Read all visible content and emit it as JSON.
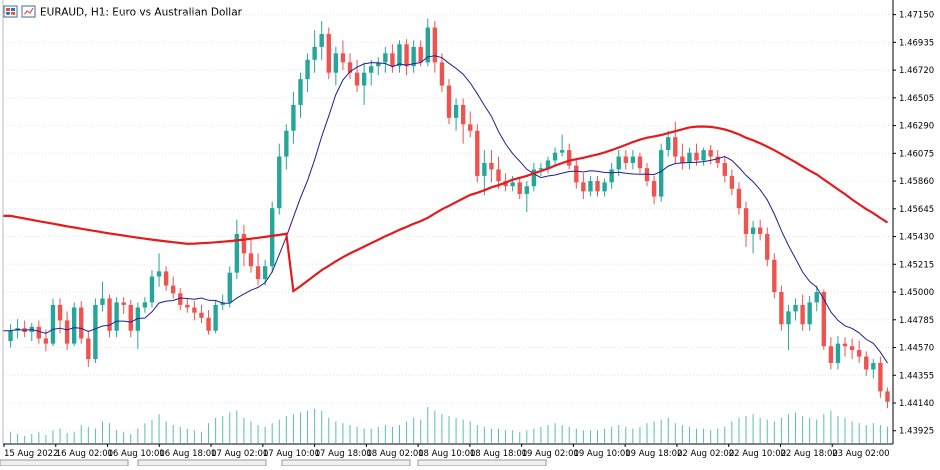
{
  "header": {
    "symbol_title": "EURAUD, H1:  Euro vs Australian Dollar",
    "toolbar_icons": [
      "grid-chart-icon",
      "chart-window-icon"
    ]
  },
  "colors": {
    "background": "#ffffff",
    "bull": "#26a69a",
    "bear": "#ef5350",
    "ma_fast": "#1f1f8f",
    "ma_slow": "#e41a1c",
    "volume": "#26a69a",
    "grid": "#e6e6e6",
    "axis": "#000000"
  },
  "chart_data": {
    "type": "candlestick",
    "title": "EURAUD, H1:  Euro vs Australian Dollar",
    "ylim": [
      1.4383,
      1.4724
    ],
    "y_ticks": [
      "1.47150",
      "1.46935",
      "1.46720",
      "1.46505",
      "1.46290",
      "1.46075",
      "1.45860",
      "1.45645",
      "1.45430",
      "1.45215",
      "1.45000",
      "1.44785",
      "1.44570",
      "1.44355",
      "1.44140",
      "1.43925"
    ],
    "x_ticks": [
      "15 Aug 2022",
      "16 Aug 02:00",
      "16 Aug 10:00",
      "16 Aug 18:00",
      "17 Aug 02:00",
      "17 Aug 10:00",
      "17 Aug 18:00",
      "18 Aug 02:00",
      "18 Aug 10:00",
      "18 Aug 18:00",
      "19 Aug 02:00",
      "19 Aug 10:00",
      "19 Aug 18:00",
      "22 Aug 02:00",
      "22 Aug 10:00",
      "22 Aug 18:00",
      "23 Aug 02:00"
    ],
    "grid": true,
    "candles": [
      {
        "o": 1.4462,
        "h": 1.4475,
        "l": 1.4457,
        "c": 1.447
      },
      {
        "o": 1.447,
        "h": 1.4479,
        "l": 1.4464,
        "c": 1.4472
      },
      {
        "o": 1.4472,
        "h": 1.4478,
        "l": 1.4465,
        "c": 1.4469
      },
      {
        "o": 1.4469,
        "h": 1.4476,
        "l": 1.4462,
        "c": 1.4473
      },
      {
        "o": 1.4473,
        "h": 1.4478,
        "l": 1.446,
        "c": 1.4464
      },
      {
        "o": 1.4464,
        "h": 1.4471,
        "l": 1.4454,
        "c": 1.446
      },
      {
        "o": 1.446,
        "h": 1.4495,
        "l": 1.4458,
        "c": 1.449
      },
      {
        "o": 1.449,
        "h": 1.4495,
        "l": 1.4468,
        "c": 1.4478
      },
      {
        "o": 1.4478,
        "h": 1.4485,
        "l": 1.4455,
        "c": 1.446
      },
      {
        "o": 1.446,
        "h": 1.4492,
        "l": 1.4458,
        "c": 1.4488
      },
      {
        "o": 1.4488,
        "h": 1.4493,
        "l": 1.446,
        "c": 1.4464
      },
      {
        "o": 1.4464,
        "h": 1.447,
        "l": 1.4442,
        "c": 1.4448
      },
      {
        "o": 1.4448,
        "h": 1.4495,
        "l": 1.4445,
        "c": 1.449
      },
      {
        "o": 1.449,
        "h": 1.4508,
        "l": 1.4485,
        "c": 1.4495
      },
      {
        "o": 1.4495,
        "h": 1.4498,
        "l": 1.4465,
        "c": 1.447
      },
      {
        "o": 1.447,
        "h": 1.4496,
        "l": 1.4465,
        "c": 1.4492
      },
      {
        "o": 1.4492,
        "h": 1.4496,
        "l": 1.4483,
        "c": 1.449
      },
      {
        "o": 1.449,
        "h": 1.4494,
        "l": 1.4465,
        "c": 1.447
      },
      {
        "o": 1.447,
        "h": 1.4492,
        "l": 1.4456,
        "c": 1.4488
      },
      {
        "o": 1.4488,
        "h": 1.4496,
        "l": 1.4484,
        "c": 1.4492
      },
      {
        "o": 1.4492,
        "h": 1.4517,
        "l": 1.4488,
        "c": 1.4512
      },
      {
        "o": 1.4512,
        "h": 1.453,
        "l": 1.4504,
        "c": 1.4516
      },
      {
        "o": 1.4516,
        "h": 1.452,
        "l": 1.4501,
        "c": 1.4505
      },
      {
        "o": 1.4505,
        "h": 1.4512,
        "l": 1.4495,
        "c": 1.4499
      },
      {
        "o": 1.4499,
        "h": 1.4503,
        "l": 1.4486,
        "c": 1.449
      },
      {
        "o": 1.449,
        "h": 1.4495,
        "l": 1.4484,
        "c": 1.4488
      },
      {
        "o": 1.4488,
        "h": 1.4493,
        "l": 1.4478,
        "c": 1.4484
      },
      {
        "o": 1.4484,
        "h": 1.449,
        "l": 1.4476,
        "c": 1.448
      },
      {
        "o": 1.448,
        "h": 1.4486,
        "l": 1.4467,
        "c": 1.447
      },
      {
        "o": 1.447,
        "h": 1.4493,
        "l": 1.4468,
        "c": 1.449
      },
      {
        "o": 1.449,
        "h": 1.4498,
        "l": 1.4486,
        "c": 1.4492
      },
      {
        "o": 1.4492,
        "h": 1.452,
        "l": 1.4488,
        "c": 1.4515
      },
      {
        "o": 1.4515,
        "h": 1.4556,
        "l": 1.451,
        "c": 1.4545
      },
      {
        "o": 1.4545,
        "h": 1.4552,
        "l": 1.452,
        "c": 1.453
      },
      {
        "o": 1.453,
        "h": 1.4542,
        "l": 1.4515,
        "c": 1.452
      },
      {
        "o": 1.452,
        "h": 1.453,
        "l": 1.4505,
        "c": 1.451
      },
      {
        "o": 1.451,
        "h": 1.4525,
        "l": 1.4505,
        "c": 1.452
      },
      {
        "o": 1.452,
        "h": 1.457,
        "l": 1.4515,
        "c": 1.4565
      },
      {
        "o": 1.4565,
        "h": 1.4615,
        "l": 1.456,
        "c": 1.4605
      },
      {
        "o": 1.4605,
        "h": 1.463,
        "l": 1.4595,
        "c": 1.4625
      },
      {
        "o": 1.4625,
        "h": 1.4655,
        "l": 1.4615,
        "c": 1.4645
      },
      {
        "o": 1.4645,
        "h": 1.467,
        "l": 1.4635,
        "c": 1.4665
      },
      {
        "o": 1.4665,
        "h": 1.4685,
        "l": 1.4655,
        "c": 1.468
      },
      {
        "o": 1.468,
        "h": 1.4703,
        "l": 1.467,
        "c": 1.469
      },
      {
        "o": 1.469,
        "h": 1.471,
        "l": 1.468,
        "c": 1.47
      },
      {
        "o": 1.47,
        "h": 1.4705,
        "l": 1.4665,
        "c": 1.467
      },
      {
        "o": 1.467,
        "h": 1.469,
        "l": 1.466,
        "c": 1.4685
      },
      {
        "o": 1.4685,
        "h": 1.4695,
        "l": 1.4672,
        "c": 1.4678
      },
      {
        "o": 1.4678,
        "h": 1.4685,
        "l": 1.4665,
        "c": 1.467
      },
      {
        "o": 1.467,
        "h": 1.468,
        "l": 1.4655,
        "c": 1.466
      },
      {
        "o": 1.466,
        "h": 1.4678,
        "l": 1.4645,
        "c": 1.467
      },
      {
        "o": 1.467,
        "h": 1.468,
        "l": 1.466,
        "c": 1.4675
      },
      {
        "o": 1.4675,
        "h": 1.4682,
        "l": 1.4668,
        "c": 1.4678
      },
      {
        "o": 1.4678,
        "h": 1.469,
        "l": 1.467,
        "c": 1.4685
      },
      {
        "o": 1.4685,
        "h": 1.4692,
        "l": 1.467,
        "c": 1.4675
      },
      {
        "o": 1.4675,
        "h": 1.4695,
        "l": 1.467,
        "c": 1.4692
      },
      {
        "o": 1.4692,
        "h": 1.4696,
        "l": 1.4668,
        "c": 1.4675
      },
      {
        "o": 1.4675,
        "h": 1.4695,
        "l": 1.467,
        "c": 1.469
      },
      {
        "o": 1.469,
        "h": 1.4695,
        "l": 1.4675,
        "c": 1.4678
      },
      {
        "o": 1.4678,
        "h": 1.4712,
        "l": 1.4675,
        "c": 1.4705
      },
      {
        "o": 1.4705,
        "h": 1.471,
        "l": 1.467,
        "c": 1.4678
      },
      {
        "o": 1.4678,
        "h": 1.4685,
        "l": 1.4655,
        "c": 1.466
      },
      {
        "o": 1.466,
        "h": 1.4665,
        "l": 1.463,
        "c": 1.4635
      },
      {
        "o": 1.4635,
        "h": 1.465,
        "l": 1.4625,
        "c": 1.4645
      },
      {
        "o": 1.4645,
        "h": 1.465,
        "l": 1.4615,
        "c": 1.463
      },
      {
        "o": 1.463,
        "h": 1.464,
        "l": 1.462,
        "c": 1.4625
      },
      {
        "o": 1.4625,
        "h": 1.463,
        "l": 1.4585,
        "c": 1.459
      },
      {
        "o": 1.459,
        "h": 1.461,
        "l": 1.4575,
        "c": 1.46
      },
      {
        "o": 1.46,
        "h": 1.461,
        "l": 1.4585,
        "c": 1.4595
      },
      {
        "o": 1.4595,
        "h": 1.4605,
        "l": 1.458,
        "c": 1.4586
      },
      {
        "o": 1.4586,
        "h": 1.4592,
        "l": 1.4578,
        "c": 1.4582
      },
      {
        "o": 1.4582,
        "h": 1.459,
        "l": 1.4578,
        "c": 1.4585
      },
      {
        "o": 1.4585,
        "h": 1.4588,
        "l": 1.4572,
        "c": 1.4576
      },
      {
        "o": 1.4576,
        "h": 1.4586,
        "l": 1.4562,
        "c": 1.4582
      },
      {
        "o": 1.4582,
        "h": 1.46,
        "l": 1.4578,
        "c": 1.4595
      },
      {
        "o": 1.4595,
        "h": 1.46,
        "l": 1.459,
        "c": 1.4596
      },
      {
        "o": 1.4596,
        "h": 1.4605,
        "l": 1.4592,
        "c": 1.4602
      },
      {
        "o": 1.4602,
        "h": 1.4612,
        "l": 1.4598,
        "c": 1.4608
      },
      {
        "o": 1.4608,
        "h": 1.4622,
        "l": 1.4605,
        "c": 1.461
      },
      {
        "o": 1.461,
        "h": 1.4615,
        "l": 1.4595,
        "c": 1.4598
      },
      {
        "o": 1.4598,
        "h": 1.4602,
        "l": 1.458,
        "c": 1.4585
      },
      {
        "o": 1.4585,
        "h": 1.4592,
        "l": 1.4572,
        "c": 1.4578
      },
      {
        "o": 1.4578,
        "h": 1.459,
        "l": 1.4574,
        "c": 1.4586
      },
      {
        "o": 1.4586,
        "h": 1.459,
        "l": 1.4574,
        "c": 1.4578
      },
      {
        "o": 1.4578,
        "h": 1.4588,
        "l": 1.4574,
        "c": 1.4585
      },
      {
        "o": 1.4585,
        "h": 1.46,
        "l": 1.458,
        "c": 1.4595
      },
      {
        "o": 1.4595,
        "h": 1.461,
        "l": 1.459,
        "c": 1.4605
      },
      {
        "o": 1.4605,
        "h": 1.461,
        "l": 1.4595,
        "c": 1.46
      },
      {
        "o": 1.46,
        "h": 1.461,
        "l": 1.4595,
        "c": 1.4605
      },
      {
        "o": 1.4605,
        "h": 1.4608,
        "l": 1.4592,
        "c": 1.4596
      },
      {
        "o": 1.4596,
        "h": 1.46,
        "l": 1.4582,
        "c": 1.4586
      },
      {
        "o": 1.4586,
        "h": 1.459,
        "l": 1.4568,
        "c": 1.4574
      },
      {
        "o": 1.4574,
        "h": 1.4615,
        "l": 1.457,
        "c": 1.461
      },
      {
        "o": 1.461,
        "h": 1.4625,
        "l": 1.4605,
        "c": 1.462
      },
      {
        "o": 1.462,
        "h": 1.4632,
        "l": 1.46,
        "c": 1.4605
      },
      {
        "o": 1.4605,
        "h": 1.4615,
        "l": 1.4595,
        "c": 1.46
      },
      {
        "o": 1.46,
        "h": 1.4612,
        "l": 1.4595,
        "c": 1.4608
      },
      {
        "o": 1.4608,
        "h": 1.4615,
        "l": 1.4598,
        "c": 1.4602
      },
      {
        "o": 1.4602,
        "h": 1.4612,
        "l": 1.4598,
        "c": 1.461
      },
      {
        "o": 1.461,
        "h": 1.4614,
        "l": 1.4599,
        "c": 1.4605
      },
      {
        "o": 1.4605,
        "h": 1.461,
        "l": 1.4596,
        "c": 1.46
      },
      {
        "o": 1.46,
        "h": 1.4605,
        "l": 1.4585,
        "c": 1.459
      },
      {
        "o": 1.459,
        "h": 1.4595,
        "l": 1.4575,
        "c": 1.458
      },
      {
        "o": 1.458,
        "h": 1.4585,
        "l": 1.456,
        "c": 1.4565
      },
      {
        "o": 1.4565,
        "h": 1.457,
        "l": 1.4535,
        "c": 1.4545
      },
      {
        "o": 1.4545,
        "h": 1.4555,
        "l": 1.453,
        "c": 1.455
      },
      {
        "o": 1.455,
        "h": 1.4556,
        "l": 1.454,
        "c": 1.4545
      },
      {
        "o": 1.4545,
        "h": 1.455,
        "l": 1.452,
        "c": 1.4525
      },
      {
        "o": 1.4525,
        "h": 1.453,
        "l": 1.4495,
        "c": 1.45
      },
      {
        "o": 1.45,
        "h": 1.4505,
        "l": 1.447,
        "c": 1.4475
      },
      {
        "o": 1.4475,
        "h": 1.449,
        "l": 1.4455,
        "c": 1.4485
      },
      {
        "o": 1.4485,
        "h": 1.4495,
        "l": 1.4478,
        "c": 1.449
      },
      {
        "o": 1.449,
        "h": 1.4498,
        "l": 1.447,
        "c": 1.4475
      },
      {
        "o": 1.4475,
        "h": 1.4497,
        "l": 1.447,
        "c": 1.4492
      },
      {
        "o": 1.4492,
        "h": 1.4505,
        "l": 1.4485,
        "c": 1.45
      },
      {
        "o": 1.45,
        "h": 1.4502,
        "l": 1.4455,
        "c": 1.4458
      },
      {
        "o": 1.4458,
        "h": 1.4465,
        "l": 1.444,
        "c": 1.4445
      },
      {
        "o": 1.4445,
        "h": 1.4466,
        "l": 1.444,
        "c": 1.446
      },
      {
        "o": 1.446,
        "h": 1.4465,
        "l": 1.445,
        "c": 1.4458
      },
      {
        "o": 1.4458,
        "h": 1.4464,
        "l": 1.4448,
        "c": 1.4455
      },
      {
        "o": 1.4455,
        "h": 1.4462,
        "l": 1.4445,
        "c": 1.445
      },
      {
        "o": 1.445,
        "h": 1.4454,
        "l": 1.4435,
        "c": 1.444
      },
      {
        "o": 1.444,
        "h": 1.4448,
        "l": 1.4433,
        "c": 1.4445
      },
      {
        "o": 1.4445,
        "h": 1.445,
        "l": 1.4418,
        "c": 1.4423
      },
      {
        "o": 1.4423,
        "h": 1.4426,
        "l": 1.441,
        "c": 1.4415
      }
    ],
    "volume_relative": [
      0.3,
      0.25,
      0.2,
      0.25,
      0.3,
      0.22,
      0.35,
      0.4,
      0.28,
      0.3,
      0.5,
      0.45,
      0.4,
      0.6,
      0.55,
      0.35,
      0.3,
      0.25,
      0.4,
      0.55,
      0.65,
      0.8,
      0.6,
      0.5,
      0.45,
      0.4,
      0.35,
      0.3,
      0.55,
      0.7,
      0.75,
      0.85,
      0.9,
      0.7,
      0.6,
      0.5,
      0.45,
      0.55,
      0.65,
      0.75,
      0.8,
      0.85,
      0.9,
      0.95,
      0.9,
      0.7,
      0.6,
      0.55,
      0.5,
      0.45,
      0.4,
      0.4,
      0.45,
      0.5,
      0.45,
      0.5,
      0.6,
      0.7,
      0.65,
      1.0,
      0.9,
      0.8,
      0.75,
      0.7,
      0.65,
      0.6,
      0.5,
      0.45,
      0.4,
      0.4,
      0.35,
      0.35,
      0.3,
      0.35,
      0.4,
      0.45,
      0.5,
      0.55,
      0.5,
      0.45,
      0.4,
      0.35,
      0.35,
      0.35,
      0.4,
      0.45,
      0.5,
      0.45,
      0.4,
      0.45,
      0.55,
      0.6,
      0.65,
      0.7,
      0.55,
      0.5,
      0.45,
      0.4,
      0.4,
      0.35,
      0.4,
      0.45,
      0.6,
      0.7,
      0.75,
      0.8,
      0.7,
      0.65,
      0.6,
      0.7,
      0.8,
      0.85,
      0.75,
      0.7,
      0.65,
      0.8,
      0.9,
      0.75,
      0.7,
      0.6,
      0.55,
      0.5,
      0.55,
      0.5,
      0.45
    ],
    "ma_fast_label": "",
    "ma_slow_label": ""
  },
  "footer": {
    "nav_tabs": [
      "",
      "",
      "",
      ""
    ]
  }
}
